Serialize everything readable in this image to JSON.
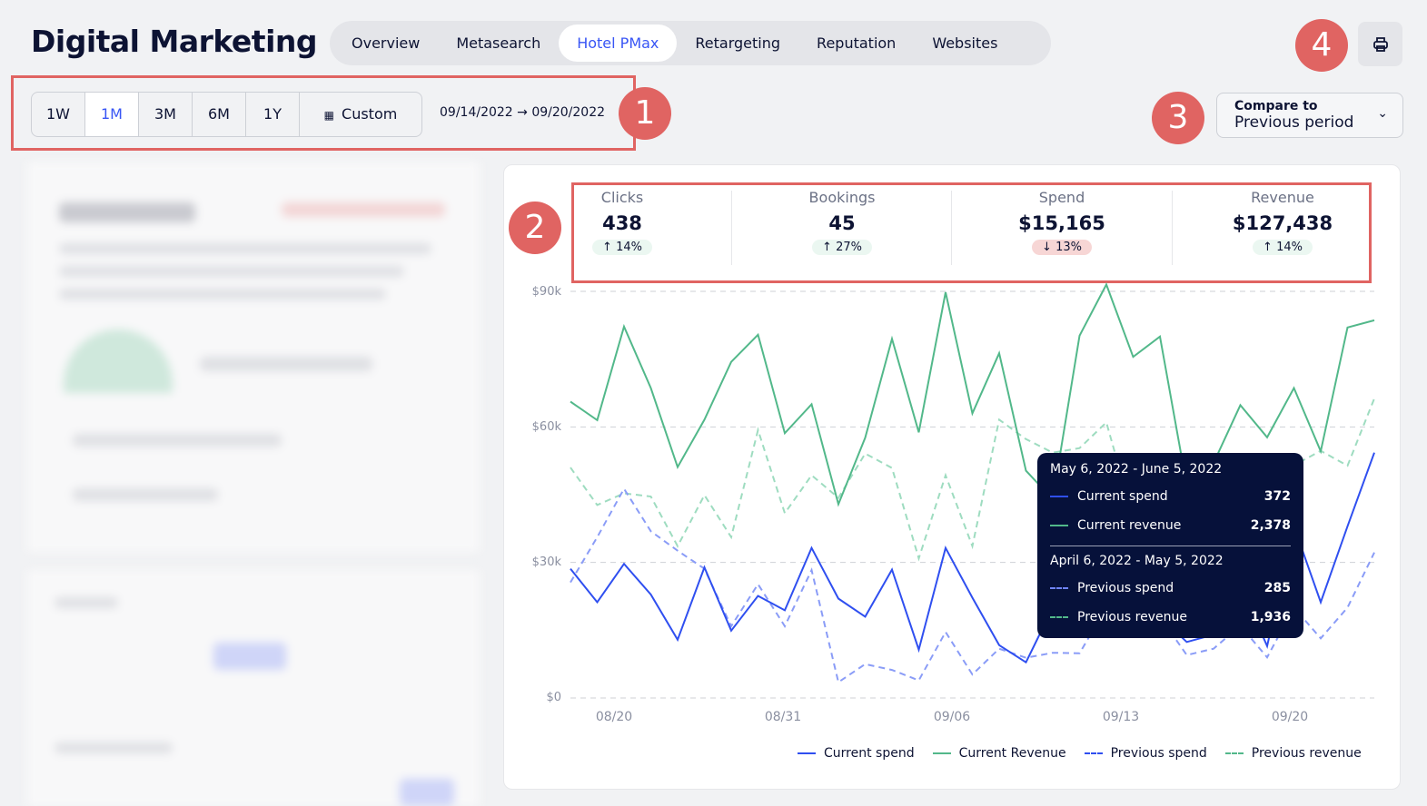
{
  "header": {
    "title": "Digital Marketing",
    "tabs": [
      {
        "label": "Overview",
        "active": false
      },
      {
        "label": "Metasearch",
        "active": false
      },
      {
        "label": "Hotel PMax",
        "active": true
      },
      {
        "label": "Retargeting",
        "active": false
      },
      {
        "label": "Reputation",
        "active": false
      },
      {
        "label": "Websites",
        "active": false
      }
    ],
    "print_icon": "printer-icon"
  },
  "range": {
    "buttons": [
      "1W",
      "1M",
      "3M",
      "6M",
      "1Y"
    ],
    "active": "1M",
    "custom_label": "Custom",
    "custom_icon": "calendar-icon",
    "date_range": "09/14/2022 → 09/20/2022"
  },
  "compare": {
    "label": "Compare to",
    "value": "Previous period"
  },
  "callouts": [
    "1",
    "2",
    "3",
    "4"
  ],
  "kpis": [
    {
      "label": "Clicks",
      "value": "438",
      "change": "14%",
      "direction": "up"
    },
    {
      "label": "Bookings",
      "value": "45",
      "change": "27%",
      "direction": "up"
    },
    {
      "label": "Spend",
      "value": "$15,165",
      "change": "13%",
      "direction": "down"
    },
    {
      "label": "Revenue",
      "value": "$127,438",
      "change": "14%",
      "direction": "up"
    }
  ],
  "colors": {
    "accent": "#3855f5",
    "spend": "#2f4ff0",
    "revenue": "#52b88a",
    "prev_spend": "#8a9cf7",
    "prev_revenue": "#9edcc0",
    "callout": "#e06462",
    "tooltip_bg": "#06113a"
  },
  "chart_data": {
    "type": "line",
    "y_ticks": [
      "$0",
      "$30k",
      "$60k",
      "$90k"
    ],
    "ylim": [
      0,
      90000
    ],
    "x_tick_labels": [
      "08/20",
      "08/31",
      "09/06",
      "09/13",
      "09/20"
    ],
    "grid": true,
    "legend_position": "bottom-right",
    "series": [
      {
        "name": "Current spend",
        "style": "solid",
        "values": [
          28600,
          21200,
          29700,
          22900,
          12900,
          28900,
          14900,
          22600,
          19400,
          33200,
          22000,
          18000,
          28400,
          10700,
          33200,
          22200,
          11700,
          7900,
          20000,
          30000,
          22000,
          28000,
          18000,
          12400,
          14000,
          25000,
          11500,
          38000,
          21200,
          38000,
          54300
        ]
      },
      {
        "name": "Current Revenue",
        "style": "solid",
        "values": [
          65600,
          61500,
          82200,
          68600,
          51100,
          61600,
          74400,
          80400,
          58600,
          65000,
          42900,
          57600,
          79500,
          58800,
          89800,
          63000,
          76300,
          50300,
          44000,
          80200,
          91500,
          75500,
          80000,
          47000,
          52000,
          64800,
          57700,
          68600,
          54600,
          82000,
          83600
        ]
      },
      {
        "name": "Previous spend",
        "style": "dashed",
        "values": [
          25600,
          35600,
          46300,
          36900,
          32600,
          28600,
          15900,
          25200,
          15900,
          28300,
          3500,
          7500,
          6200,
          3900,
          14600,
          5200,
          10900,
          8900,
          10000,
          9900,
          20000,
          15000,
          18000,
          9500,
          10900,
          16000,
          9000,
          20000,
          13200,
          20000,
          32200
        ]
      },
      {
        "name": "Previous revenue",
        "style": "dashed",
        "values": [
          51000,
          42700,
          45300,
          44600,
          33600,
          44900,
          35600,
          59300,
          40900,
          49300,
          44300,
          54100,
          50900,
          30900,
          49300,
          33600,
          61600,
          57300,
          54300,
          55300,
          61000,
          40000,
          45000,
          38000,
          46000,
          52000,
          52000,
          51500,
          54700,
          51400,
          66300
        ]
      }
    ],
    "tooltip": {
      "current_period": "May 6, 2022 - June 5, 2022",
      "previous_period": "April 6, 2022 - May 5, 2022",
      "rows": [
        {
          "label": "Current spend",
          "value": "372"
        },
        {
          "label": "Current revenue",
          "value": "2,378"
        },
        {
          "label": "Previous spend",
          "value": "285"
        },
        {
          "label": "Previous revenue",
          "value": "1,936"
        }
      ]
    },
    "legend": [
      "Current spend",
      "Current Revenue",
      "Previous spend",
      "Previous revenue"
    ]
  }
}
